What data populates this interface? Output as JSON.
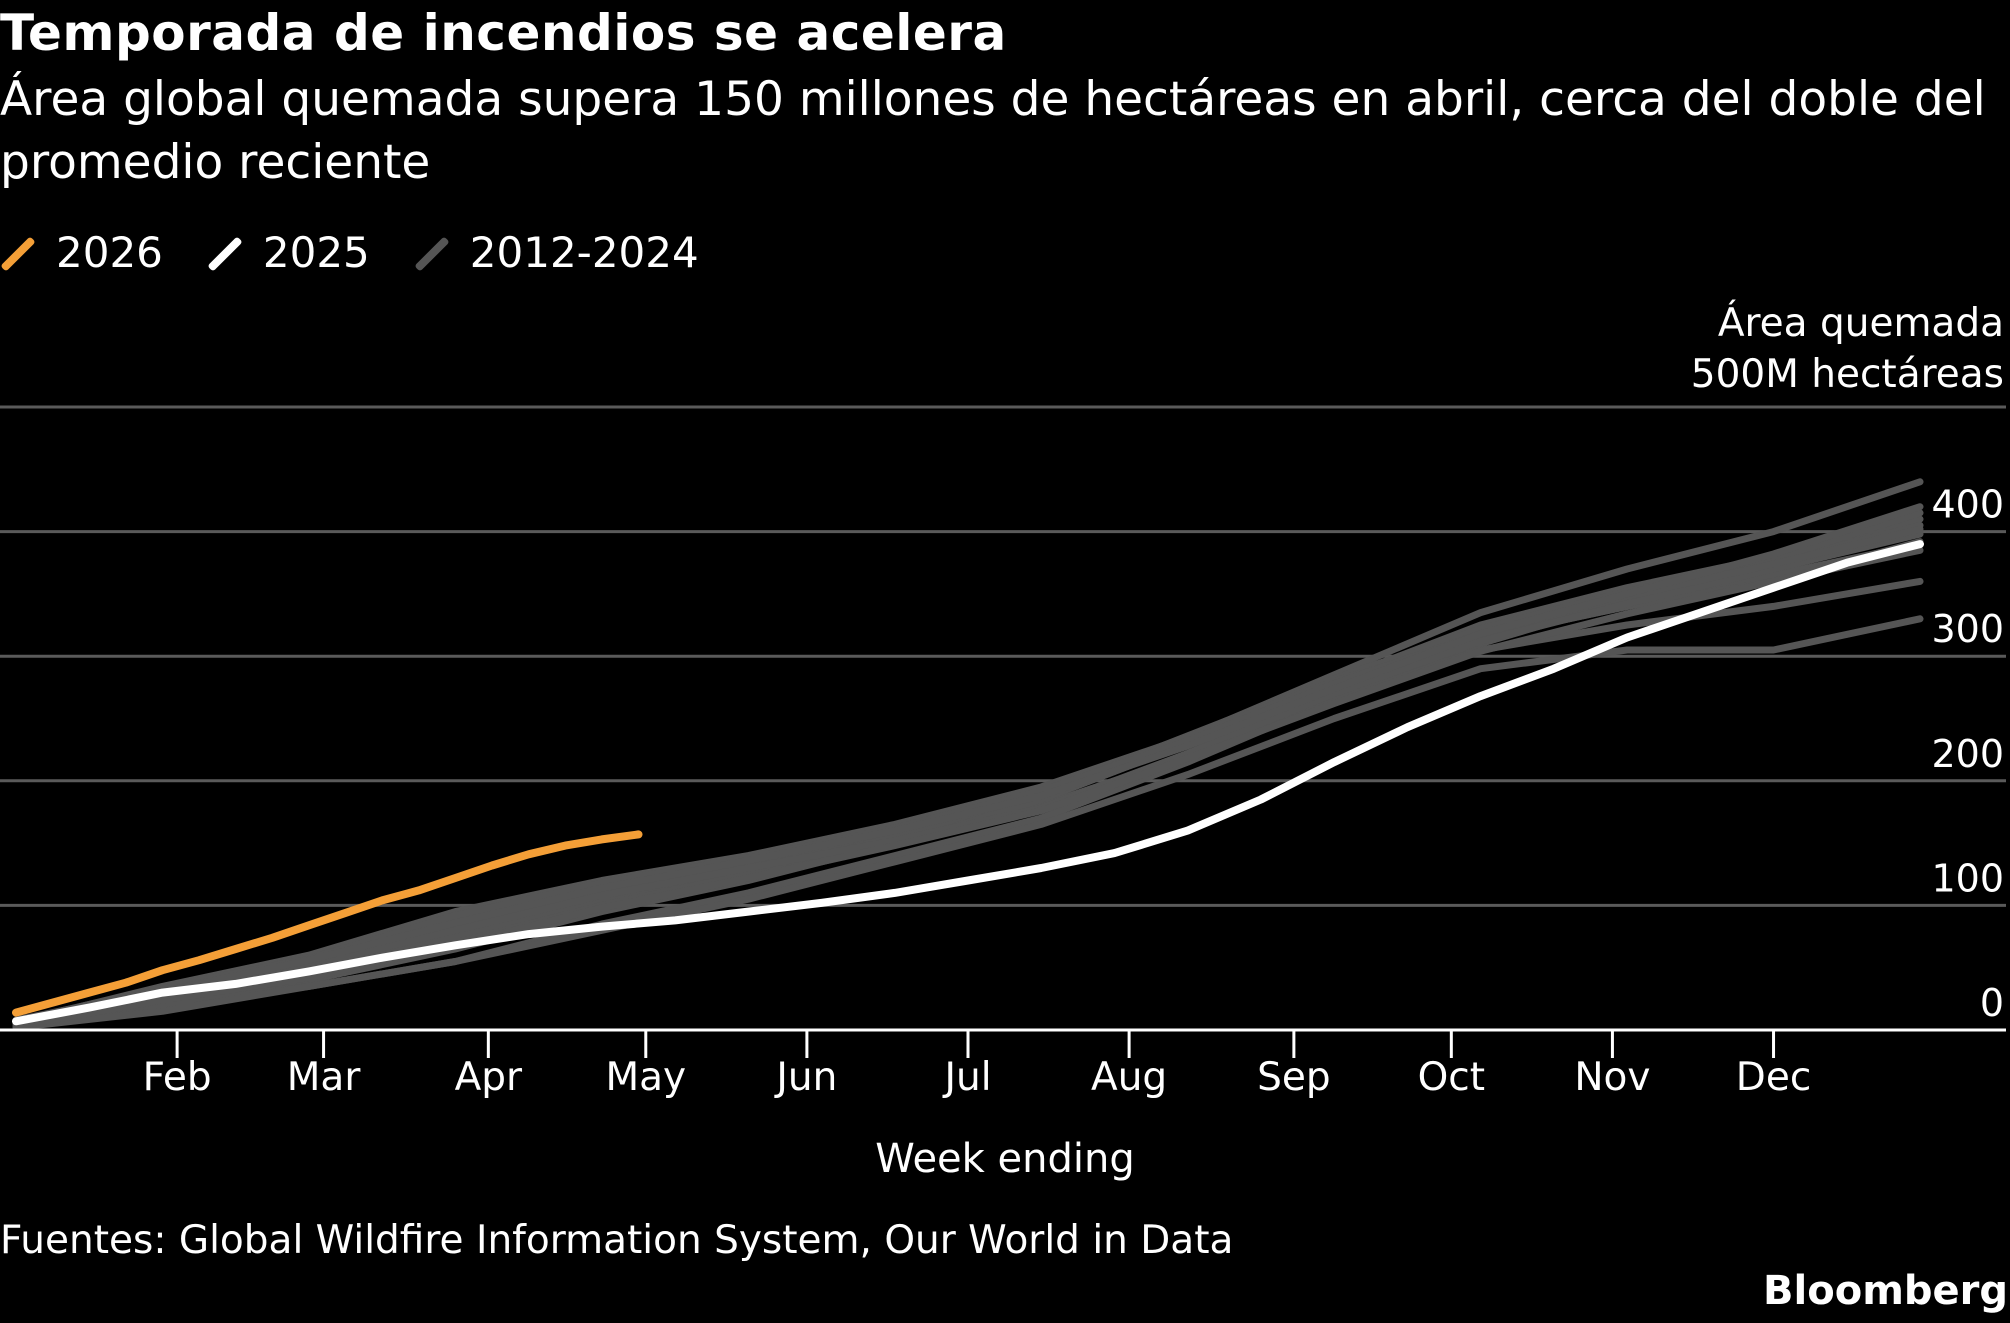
{
  "header": {
    "title": "Temporada de incendios se acelera",
    "subtitle": "Área global quemada supera 150 millones de hectáreas en abril, cerca del doble del promedio reciente"
  },
  "footer": {
    "source": "Fuentes: Global Wildfire Information System, Our World in Data",
    "brand": "Bloomberg"
  },
  "chart_data": {
    "type": "line",
    "ylabel_line1": "Área quemada",
    "ylabel_line2": "500M hectáreas",
    "xlabel": "Week ending",
    "ylim": [
      0,
      500
    ],
    "yticks": [
      0,
      100,
      200,
      300,
      400
    ],
    "xlim": [
      1,
      53
    ],
    "x_ticks": [
      {
        "label": "Feb",
        "week": 5.4
      },
      {
        "label": "Mar",
        "week": 9.4
      },
      {
        "label": "Apr",
        "week": 13.9
      },
      {
        "label": "May",
        "week": 18.2
      },
      {
        "label": "Jun",
        "week": 22.6
      },
      {
        "label": "Jul",
        "week": 27
      },
      {
        "label": "Aug",
        "week": 31.4
      },
      {
        "label": "Sep",
        "week": 35.9
      },
      {
        "label": "Oct",
        "week": 40.2
      },
      {
        "label": "Nov",
        "week": 44.6
      },
      {
        "label": "Dec",
        "week": 49
      }
    ],
    "colors": {
      "2026": "#F49F37",
      "2025": "#FFFFFF",
      "2012-2024": "#555555"
    },
    "legend": [
      "2026",
      "2025",
      "2012-2024"
    ],
    "series_2026": {
      "name": "2026",
      "x": [
        1,
        2,
        3,
        4,
        5,
        6,
        7,
        8,
        9,
        10,
        11,
        12,
        13,
        14,
        15,
        16,
        17,
        18
      ],
      "values": [
        14,
        22,
        30,
        38,
        48,
        56,
        65,
        74,
        84,
        94,
        104,
        112,
        122,
        132,
        141,
        148,
        153,
        157
      ]
    },
    "series_2025": {
      "name": "2025",
      "x": [
        1,
        3,
        5,
        7,
        9,
        11,
        13,
        15,
        17,
        19,
        21,
        23,
        25,
        27,
        29,
        31,
        33,
        35,
        37,
        39,
        41,
        43,
        45,
        47,
        49,
        51,
        53
      ],
      "values": [
        7,
        18,
        30,
        37,
        47,
        58,
        68,
        77,
        83,
        88,
        95,
        102,
        110,
        120,
        130,
        142,
        160,
        185,
        215,
        243,
        268,
        290,
        315,
        335,
        355,
        375,
        390
      ]
    },
    "series_history": [
      {
        "x": [
          1,
          5,
          9,
          13,
          17,
          21,
          25,
          29,
          33,
          37,
          41,
          45,
          49,
          53
        ],
        "values": [
          5,
          30,
          55,
          85,
          110,
          130,
          155,
          185,
          230,
          280,
          325,
          355,
          380,
          410
        ]
      },
      {
        "x": [
          1,
          5,
          9,
          13,
          17,
          21,
          25,
          29,
          33,
          37,
          41,
          45,
          49,
          53
        ],
        "values": [
          6,
          35,
          60,
          95,
          120,
          140,
          165,
          195,
          235,
          285,
          335,
          370,
          400,
          440
        ]
      },
      {
        "x": [
          1,
          5,
          9,
          13,
          17,
          21,
          25,
          29,
          33,
          37,
          41,
          45,
          49,
          53
        ],
        "values": [
          8,
          32,
          50,
          75,
          105,
          125,
          150,
          180,
          220,
          265,
          310,
          345,
          375,
          405
        ]
      },
      {
        "x": [
          1,
          5,
          9,
          13,
          17,
          21,
          25,
          29,
          33,
          37,
          41,
          45,
          49,
          53
        ],
        "values": [
          4,
          25,
          40,
          65,
          95,
          120,
          150,
          185,
          230,
          275,
          320,
          345,
          370,
          400
        ]
      },
      {
        "x": [
          1,
          5,
          9,
          13,
          17,
          21,
          25,
          29,
          33,
          37,
          41,
          45,
          49,
          53
        ],
        "values": [
          5,
          28,
          55,
          90,
          115,
          135,
          160,
          190,
          230,
          275,
          315,
          340,
          365,
          390
        ]
      },
      {
        "x": [
          1,
          5,
          9,
          13,
          17,
          21,
          25,
          29,
          33,
          37,
          41,
          45,
          49,
          53
        ],
        "values": [
          3,
          20,
          35,
          55,
          85,
          110,
          140,
          170,
          215,
          265,
          305,
          325,
          340,
          360
        ]
      },
      {
        "x": [
          1,
          5,
          9,
          13,
          17,
          21,
          25,
          29,
          33,
          37,
          41,
          45,
          49,
          53
        ],
        "values": [
          2,
          15,
          35,
          55,
          80,
          105,
          135,
          165,
          205,
          250,
          290,
          305,
          305,
          330
        ]
      },
      {
        "x": [
          1,
          5,
          9,
          13,
          17,
          21,
          25,
          29,
          33,
          37,
          41,
          45,
          49,
          53
        ],
        "values": [
          6,
          33,
          58,
          88,
          112,
          132,
          158,
          190,
          236,
          282,
          322,
          352,
          378,
          415
        ]
      },
      {
        "x": [
          1,
          5,
          9,
          13,
          17,
          21,
          25,
          29,
          33,
          37,
          41,
          45,
          49,
          53
        ],
        "values": [
          4,
          30,
          45,
          70,
          100,
          125,
          155,
          190,
          235,
          280,
          315,
          340,
          360,
          385
        ]
      },
      {
        "x": [
          1,
          5,
          9,
          13,
          17,
          21,
          25,
          29,
          33,
          37,
          41,
          45,
          49,
          53
        ],
        "values": [
          5,
          27,
          52,
          80,
          108,
          130,
          152,
          178,
          222,
          270,
          312,
          342,
          370,
          398
        ]
      },
      {
        "x": [
          1,
          5,
          9,
          13,
          17,
          21,
          25,
          29,
          33,
          37,
          41,
          45,
          49,
          53
        ],
        "values": [
          7,
          34,
          57,
          92,
          118,
          138,
          162,
          192,
          232,
          278,
          318,
          348,
          374,
          402
        ]
      },
      {
        "x": [
          1,
          5,
          9,
          13,
          17,
          21,
          25,
          29,
          33,
          37,
          41,
          45,
          49,
          53
        ],
        "values": [
          3,
          24,
          42,
          68,
          98,
          122,
          148,
          176,
          218,
          262,
          304,
          334,
          360,
          392
        ]
      },
      {
        "x": [
          1,
          5,
          9,
          13,
          17,
          21,
          25,
          29,
          33,
          37,
          41,
          45,
          49,
          53
        ],
        "values": [
          6,
          31,
          56,
          86,
          114,
          136,
          160,
          188,
          228,
          274,
          318,
          350,
          382,
          420
        ]
      }
    ]
  }
}
